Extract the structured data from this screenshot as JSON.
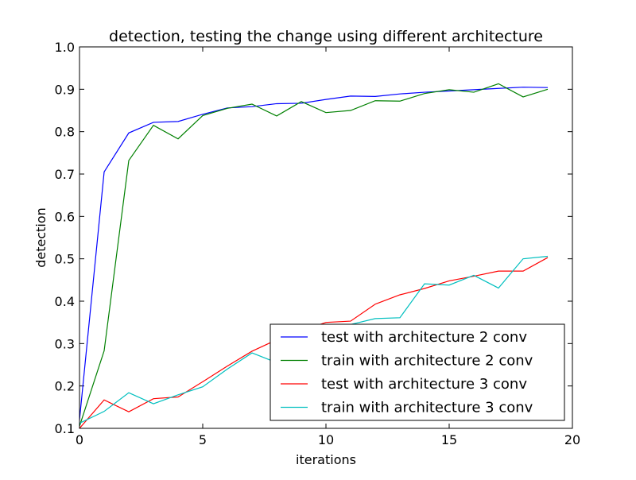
{
  "chart_data": {
    "type": "line",
    "title": "detection, testing the change using different architecture",
    "xlabel": "iterations",
    "ylabel": "detection",
    "xlim": [
      0,
      20
    ],
    "ylim": [
      0.1,
      1.0
    ],
    "xticks": [
      0,
      5,
      10,
      15,
      20
    ],
    "xtick_labels": [
      "0",
      "5",
      "10",
      "15",
      "20"
    ],
    "yticks": [
      0.1,
      0.2,
      0.3,
      0.4,
      0.5,
      0.6,
      0.7,
      0.8,
      0.9,
      1.0
    ],
    "ytick_labels": [
      "0.1",
      "0.2",
      "0.3",
      "0.4",
      "0.5",
      "0.6",
      "0.7",
      "0.8",
      "0.9",
      "1.0"
    ],
    "grid": false,
    "legend_position": "lower-right",
    "x": [
      0,
      1,
      2,
      3,
      4,
      5,
      6,
      7,
      8,
      9,
      10,
      11,
      12,
      13,
      14,
      15,
      16,
      17,
      18,
      19
    ],
    "series": [
      {
        "name": "test with architecture 2 conv",
        "color": "#0000ff",
        "values": [
          0.12,
          0.705,
          0.797,
          0.822,
          0.824,
          0.841,
          0.856,
          0.859,
          0.866,
          0.867,
          0.876,
          0.884,
          0.883,
          0.889,
          0.893,
          0.896,
          0.899,
          0.902,
          0.905,
          0.904
        ]
      },
      {
        "name": "train with architecture 2 conv",
        "color": "#008000",
        "values": [
          0.105,
          0.283,
          0.732,
          0.815,
          0.783,
          0.838,
          0.855,
          0.865,
          0.837,
          0.871,
          0.845,
          0.85,
          0.873,
          0.872,
          0.89,
          0.899,
          0.893,
          0.913,
          0.882,
          0.9
        ]
      },
      {
        "name": "test with architecture 3 conv",
        "color": "#ff0000",
        "values": [
          0.1,
          0.167,
          0.139,
          0.17,
          0.174,
          0.21,
          0.247,
          0.282,
          0.309,
          0.33,
          0.35,
          0.353,
          0.393,
          0.415,
          0.43,
          0.448,
          0.459,
          0.471,
          0.471,
          0.503
        ]
      },
      {
        "name": "train with architecture 3 conv",
        "color": "#00bfbf",
        "values": [
          0.112,
          0.14,
          0.184,
          0.158,
          0.179,
          0.198,
          0.24,
          0.278,
          0.255,
          0.3,
          0.33,
          0.345,
          0.359,
          0.361,
          0.441,
          0.438,
          0.461,
          0.431,
          0.5,
          0.506
        ]
      }
    ]
  }
}
